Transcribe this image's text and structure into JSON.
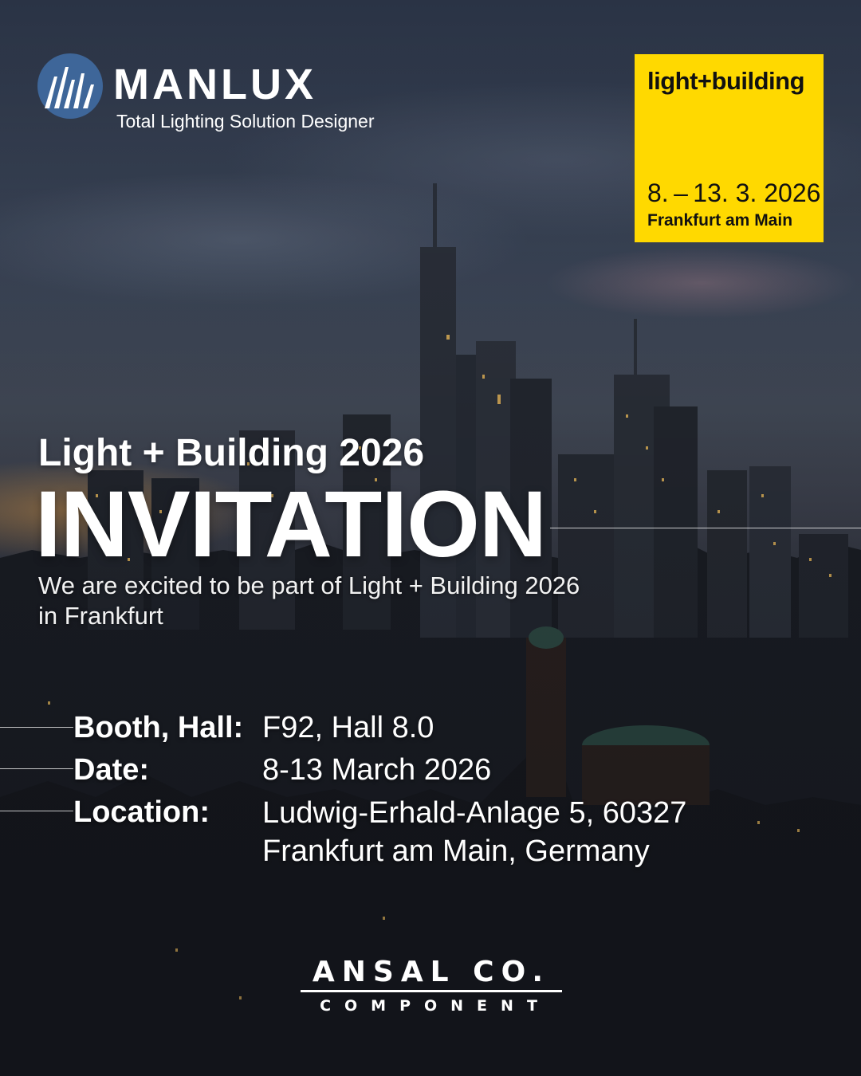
{
  "brand": {
    "name": "MANLUX",
    "tagline": "Total Lighting Solution Designer"
  },
  "fair_badge": {
    "title": "light+building",
    "dates": "8. – 13. 3. 2026",
    "city": "Frankfurt am Main",
    "color": "#ffd900"
  },
  "headline": {
    "event": "Light + Building 2026",
    "invitation": "INVITATION",
    "intro_line1": "We are excited to be part of Light + Building 2026",
    "intro_line2": "in Frankfurt"
  },
  "details": {
    "booth_label": "Booth, Hall:",
    "booth_value": "F92, Hall 8.0",
    "date_label": "Date:",
    "date_value": "8-13 March 2026",
    "location_label": "Location:",
    "location_line1": "Ludwig-Erhald-Anlage 5, 60327",
    "location_line2": "Frankfurt am Main, Germany"
  },
  "partner": {
    "name": "ANSAL CO.",
    "sub": "COMPONENT"
  }
}
